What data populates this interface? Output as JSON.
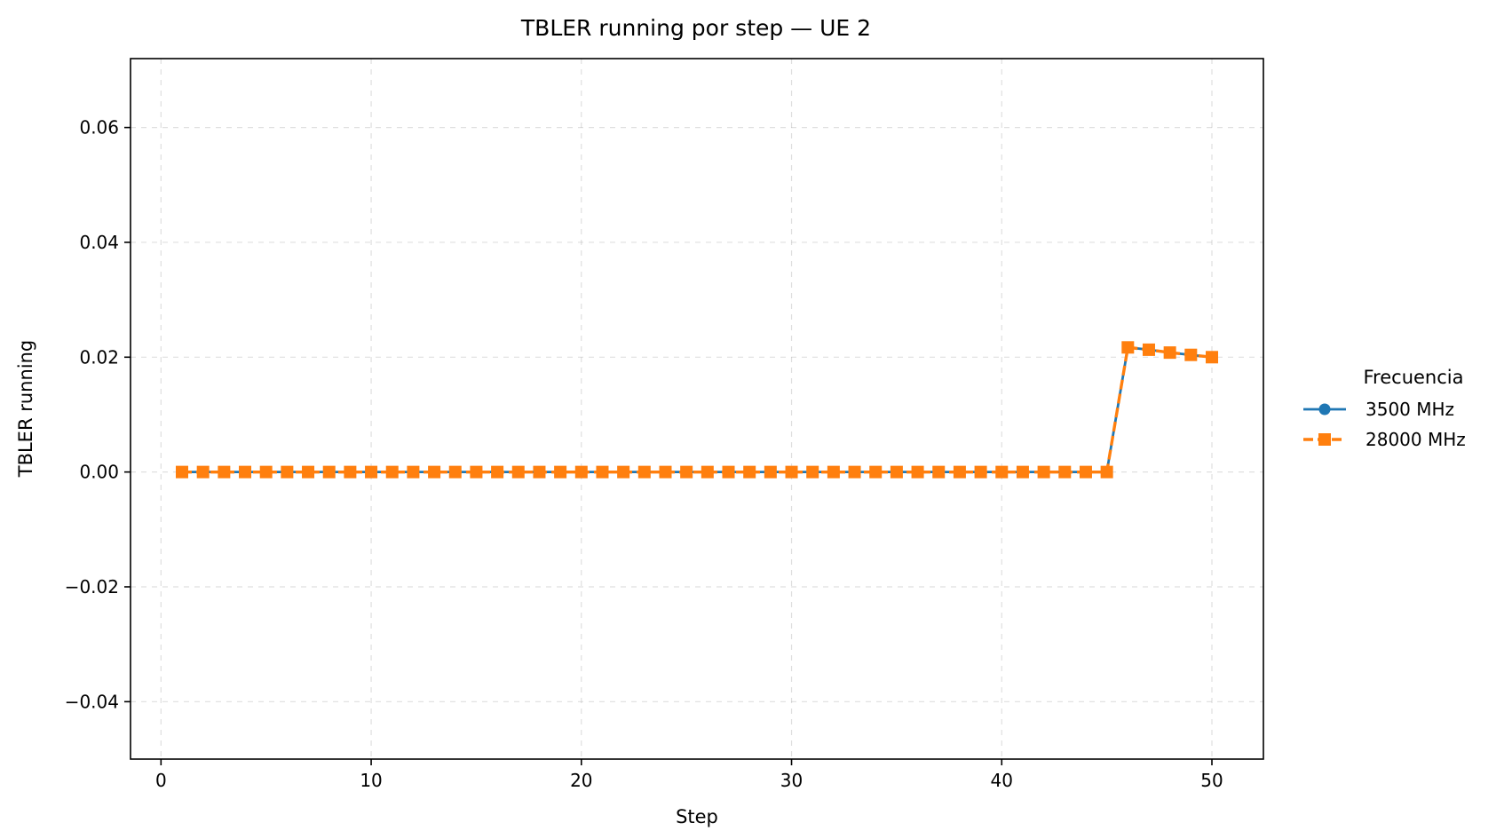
{
  "chart_data": {
    "type": "line",
    "title": "TBLER running por step — UE 2",
    "xlabel": "Step",
    "ylabel": "TBLER running",
    "xlim": [
      -1.45,
      52.45
    ],
    "ylim": [
      -0.05,
      0.072
    ],
    "xticks": [
      0,
      10,
      20,
      30,
      40,
      50
    ],
    "xtick_labels": [
      "0",
      "10",
      "20",
      "30",
      "40",
      "50"
    ],
    "yticks": [
      -0.04,
      -0.02,
      0.0,
      0.02,
      0.04,
      0.06
    ],
    "ytick_labels": [
      "−0.04",
      "−0.02",
      "0.00",
      "0.02",
      "0.04",
      "0.06"
    ],
    "grid": true,
    "legend": {
      "title": "Frecuencia",
      "placement": "outside-right"
    },
    "x": [
      1,
      2,
      3,
      4,
      5,
      6,
      7,
      8,
      9,
      10,
      11,
      12,
      13,
      14,
      15,
      16,
      17,
      18,
      19,
      20,
      21,
      22,
      23,
      24,
      25,
      26,
      27,
      28,
      29,
      30,
      31,
      32,
      33,
      34,
      35,
      36,
      37,
      38,
      39,
      40,
      41,
      42,
      43,
      44,
      45,
      46,
      47,
      48,
      49,
      50
    ],
    "series": [
      {
        "name": "3500 MHz",
        "color": "#1f77b4",
        "marker": "circle",
        "linestyle": "solid",
        "values": [
          0,
          0,
          0,
          0,
          0,
          0,
          0,
          0,
          0,
          0,
          0,
          0,
          0,
          0,
          0,
          0,
          0,
          0,
          0,
          0,
          0,
          0,
          0,
          0,
          0,
          0,
          0,
          0,
          0,
          0,
          0,
          0,
          0,
          0,
          0,
          0,
          0,
          0,
          0,
          0,
          0,
          0,
          0,
          0,
          0,
          0.0217,
          0.0213,
          0.0208,
          0.0204,
          0.02
        ]
      },
      {
        "name": "28000 MHz",
        "color": "#ff7f0e",
        "marker": "square",
        "linestyle": "dashed",
        "values": [
          0,
          0,
          0,
          0,
          0,
          0,
          0,
          0,
          0,
          0,
          0,
          0,
          0,
          0,
          0,
          0,
          0,
          0,
          0,
          0,
          0,
          0,
          0,
          0,
          0,
          0,
          0,
          0,
          0,
          0,
          0,
          0,
          0,
          0,
          0,
          0,
          0,
          0,
          0,
          0,
          0,
          0,
          0,
          0,
          0,
          0.0217,
          0.0213,
          0.0208,
          0.0204,
          0.02
        ]
      }
    ]
  }
}
